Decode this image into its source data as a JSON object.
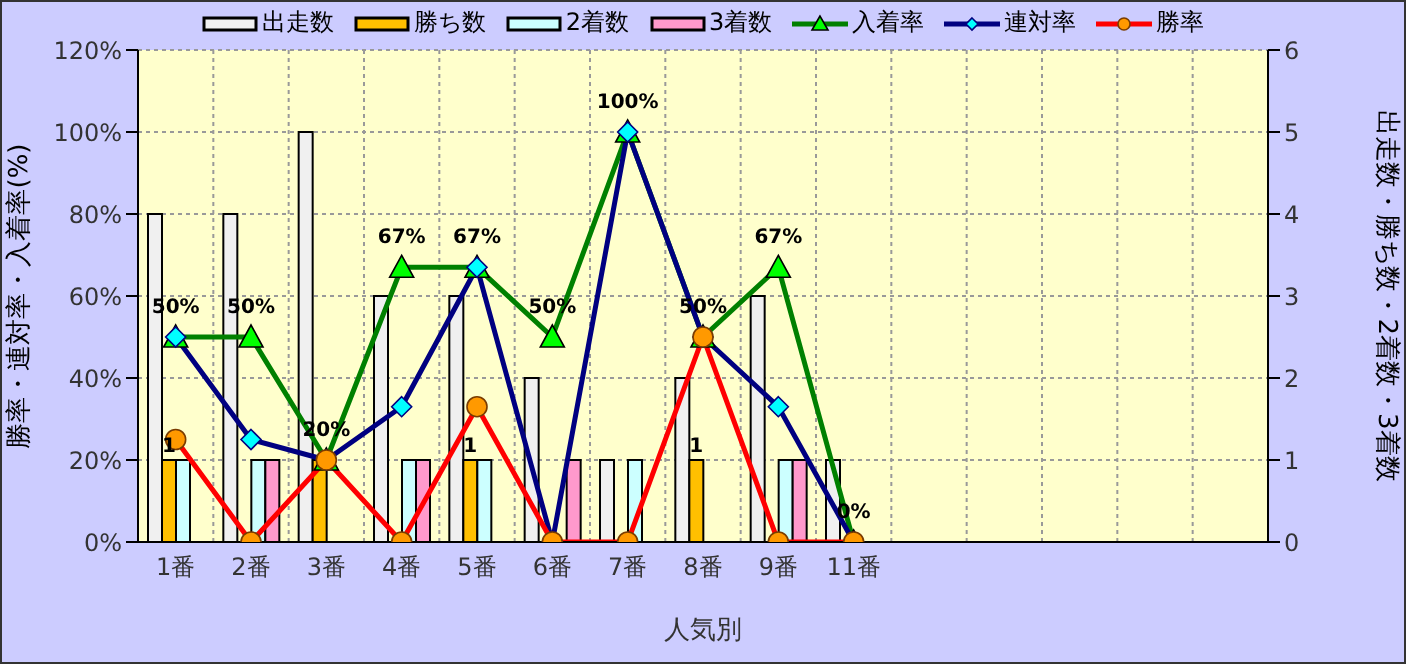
{
  "chart_data": {
    "type": "bar",
    "xlabel": "人気別",
    "ylabel": "勝率・連対率・入着率(%)",
    "y2label": "出走数・勝ち数・2着数・3着数",
    "categories": [
      "1番",
      "2番",
      "3番",
      "4番",
      "5番",
      "6番",
      "7番",
      "8番",
      "9番",
      "11番",
      null,
      null,
      null,
      null,
      null
    ],
    "series": [
      {
        "name": "出走数",
        "axis": "y2",
        "color": "#f0f0f0",
        "values": [
          4,
          4,
          5,
          3,
          3,
          2,
          1,
          2,
          3,
          1,
          null,
          null,
          null,
          null,
          null
        ]
      },
      {
        "name": "勝ち数",
        "axis": "y2",
        "color": "#ffc000",
        "values": [
          1,
          0,
          1,
          0,
          1,
          0,
          0,
          1,
          0,
          0,
          null,
          null,
          null,
          null,
          null
        ],
        "value_labels": [
          "1",
          null,
          null,
          null,
          "1",
          null,
          null,
          "1",
          null,
          null,
          null,
          null,
          null,
          null,
          null
        ]
      },
      {
        "name": "2着数",
        "axis": "y2",
        "color": "#ccffff",
        "values": [
          1,
          1,
          0,
          1,
          1,
          0,
          1,
          0,
          1,
          0,
          null,
          null,
          null,
          null,
          null
        ]
      },
      {
        "name": "3着数",
        "axis": "y2",
        "color": "#ff99cc",
        "values": [
          0,
          1,
          0,
          1,
          0,
          1,
          0,
          0,
          1,
          0,
          null,
          null,
          null,
          null,
          null
        ]
      },
      {
        "name": "入着率",
        "type": "line",
        "color": "#008000",
        "marker": "triangle",
        "values": [
          50,
          50,
          20,
          67,
          67,
          50,
          100,
          50,
          67,
          0,
          null,
          null,
          null,
          null,
          null
        ],
        "value_labels": [
          "50%",
          "50%",
          "20%",
          "67%",
          "67%",
          "50%",
          "100%",
          "50%",
          "67%",
          "0%",
          null,
          null,
          null,
          null,
          null
        ]
      },
      {
        "name": "連対率",
        "type": "line",
        "color": "#000080",
        "marker": "diamond",
        "values": [
          50,
          25,
          20,
          33,
          67,
          0,
          100,
          50,
          33,
          0,
          null,
          null,
          null,
          null,
          null
        ]
      },
      {
        "name": "勝率",
        "type": "line",
        "color": "#ff0000",
        "marker": "circle",
        "values": [
          25,
          0,
          20,
          0,
          33,
          0,
          0,
          50,
          0,
          0,
          null,
          null,
          null,
          null,
          null
        ]
      }
    ],
    "ylim": [
      0,
      120
    ],
    "yticks": [
      {
        "value": 0,
        "label": "0%"
      },
      {
        "value": 20,
        "label": "20%"
      },
      {
        "value": 40,
        "label": "40%"
      },
      {
        "value": 60,
        "label": "60%"
      },
      {
        "value": 80,
        "label": "80%"
      },
      {
        "value": 100,
        "label": "100%"
      },
      {
        "value": 120,
        "label": "120%"
      }
    ],
    "y2lim": [
      0,
      6
    ],
    "y2ticks": [
      0,
      1,
      2,
      3,
      4,
      5,
      6
    ],
    "grid": true,
    "legend": "top",
    "line_style": "solid"
  }
}
